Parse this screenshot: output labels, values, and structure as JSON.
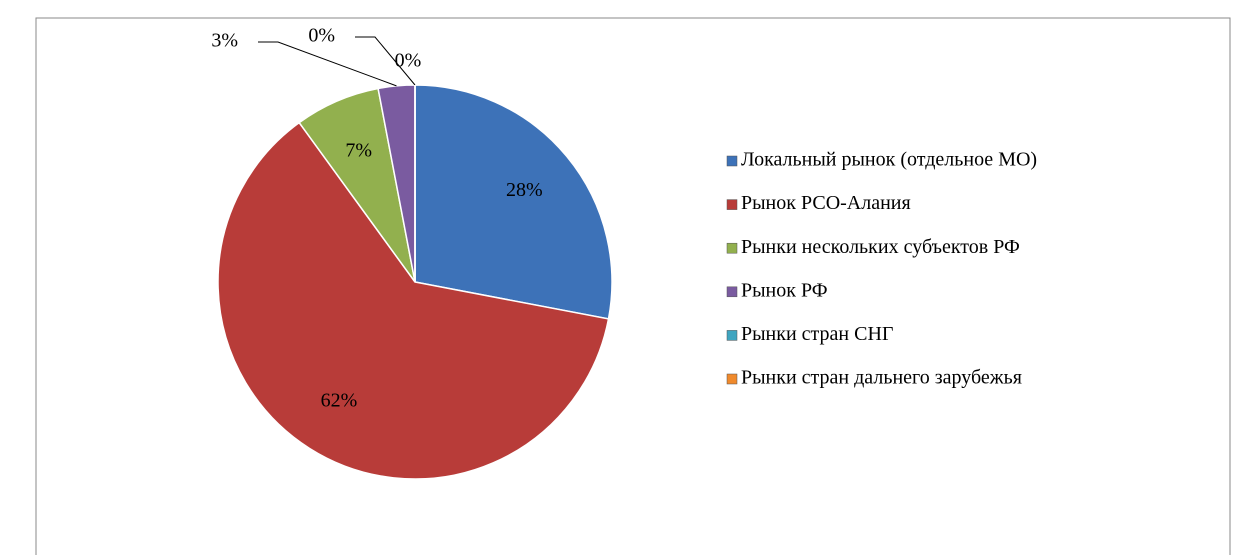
{
  "chart_data": {
    "type": "pie",
    "categories": [
      "Локальный рынок (отдельное МО)",
      "Рынок РСО-Алания",
      "Рынки нескольких субъектов РФ",
      "Рынок РФ",
      "Рынки стран СНГ",
      "Рынки стран дальнего зарубежья"
    ],
    "values": [
      28,
      62,
      7,
      3,
      0,
      0
    ],
    "value_labels": [
      "28%",
      "62%",
      "7%",
      "3%",
      "0%",
      "0%"
    ],
    "colors": [
      "#3d72b8",
      "#b83c39",
      "#92b04e",
      "#7a5ba0",
      "#3fa5c0",
      "#f08a2c"
    ],
    "legend": "right"
  }
}
